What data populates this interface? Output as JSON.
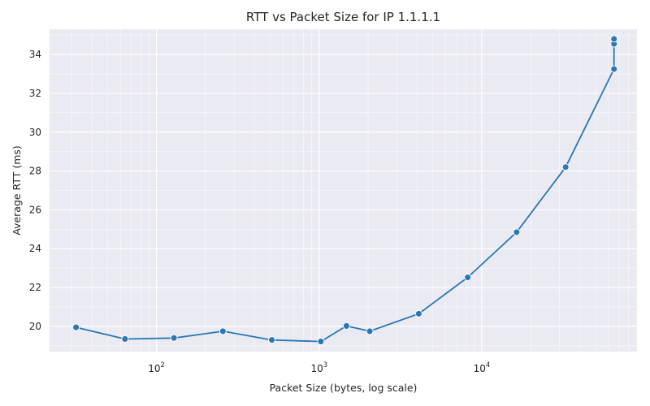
{
  "chart_data": {
    "type": "line",
    "title": "RTT vs Packet Size for IP 1.1.1.1",
    "xlabel": "Packet Size (bytes, log scale)",
    "ylabel": "Average RTT (ms)",
    "x_scale": "log",
    "xlim": [
      22,
      90000
    ],
    "ylim": [
      18.7,
      35.3
    ],
    "x_ticks": [
      {
        "value": 100,
        "base": "10",
        "exp": "2"
      },
      {
        "value": 1000,
        "base": "10",
        "exp": "3"
      },
      {
        "value": 10000,
        "base": "10",
        "exp": "4"
      }
    ],
    "y_ticks": [
      20,
      22,
      24,
      26,
      28,
      30,
      32,
      34
    ],
    "grid": true,
    "colors": {
      "line": "#2a77b4",
      "plot_bg": "#eaeaf2",
      "grid": "#ffffff"
    },
    "series": [
      {
        "x": [
          32,
          64,
          128,
          256,
          512,
          1024,
          1472,
          2048,
          4096,
          8192,
          16384,
          32768,
          65000,
          65000,
          65000
        ],
        "y": [
          19.95,
          19.35,
          19.4,
          19.75,
          19.3,
          19.22,
          20.02,
          19.75,
          20.65,
          22.52,
          24.85,
          28.2,
          33.25,
          34.55,
          34.8
        ]
      }
    ]
  }
}
